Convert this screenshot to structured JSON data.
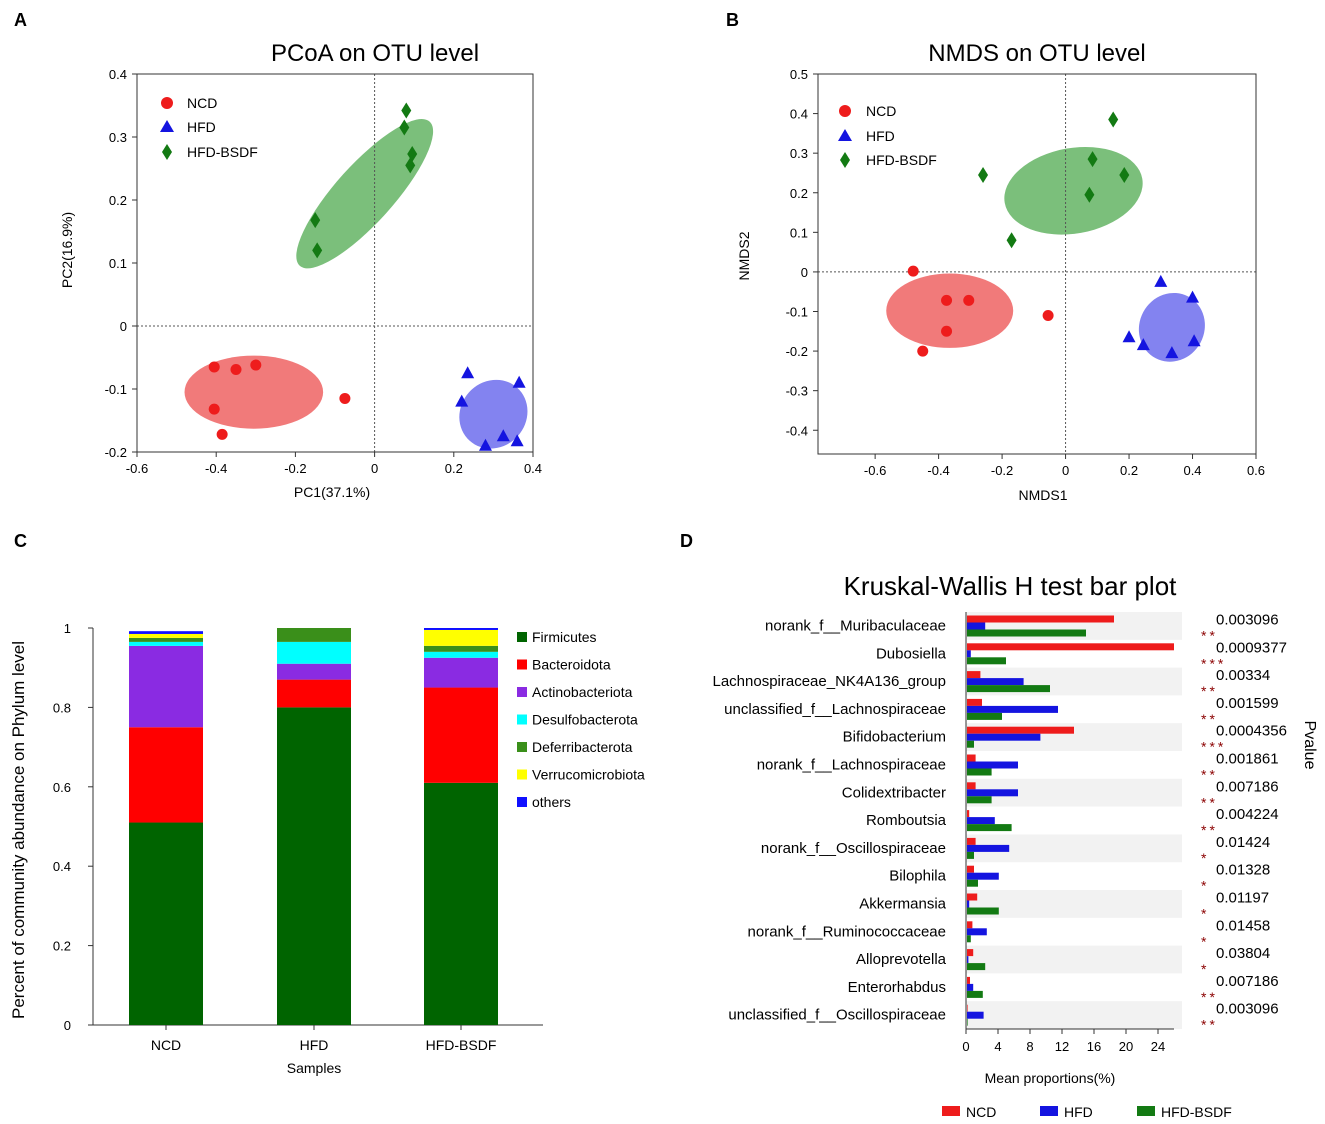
{
  "panels": {
    "a": "A",
    "b": "B",
    "c": "C",
    "d": "D"
  },
  "colors": {
    "ncd": "#ee1c1c",
    "hfd": "#1414e0",
    "hfd_bsdf": "#137a13"
  },
  "chart_data": [
    {
      "panel": "A",
      "type": "scatter",
      "title": "PCoA on OTU level",
      "xlabel": "PC1(37.1%)",
      "ylabel": "PC2(16.9%)",
      "xlim": [
        -0.6,
        0.4
      ],
      "ylim": [
        -0.2,
        0.4
      ],
      "xticks": [
        -0.6,
        -0.4,
        -0.2,
        0,
        0.2,
        0.4
      ],
      "xtick_labels": [
        "-0.6",
        "-0.4",
        "-0.2",
        "0",
        "0.2",
        "0.4"
      ],
      "yticks": [
        -0.2,
        -0.1,
        0,
        0.1,
        0.2,
        0.3,
        0.4
      ],
      "ytick_labels": [
        "-0.2",
        "-0.1",
        "0",
        "0.1",
        "0.2",
        "0.3",
        "0.4"
      ],
      "legend": [
        "NCD",
        "HFD",
        "HFD-BSDF"
      ],
      "series": [
        {
          "name": "NCD",
          "marker": "circle",
          "color": "#ee1c1c",
          "points": [
            [
              -0.405,
              -0.065
            ],
            [
              -0.35,
              -0.069
            ],
            [
              -0.3,
              -0.062
            ],
            [
              -0.405,
              -0.132
            ],
            [
              -0.385,
              -0.172
            ],
            [
              -0.075,
              -0.115
            ]
          ]
        },
        {
          "name": "HFD",
          "marker": "triangle",
          "color": "#1414e0",
          "points": [
            [
              0.235,
              -0.075
            ],
            [
              0.22,
              -0.12
            ],
            [
              0.28,
              -0.19
            ],
            [
              0.325,
              -0.175
            ],
            [
              0.36,
              -0.183
            ],
            [
              0.365,
              -0.09
            ]
          ]
        },
        {
          "name": "HFD-BSDF",
          "marker": "diamond",
          "color": "#137a13",
          "points": [
            [
              -0.15,
              0.168
            ],
            [
              -0.145,
              0.12
            ],
            [
              0.08,
              0.342
            ],
            [
              0.075,
              0.315
            ],
            [
              0.095,
              0.273
            ],
            [
              0.09,
              0.255
            ]
          ]
        }
      ],
      "ellipses": [
        {
          "group": "NCD",
          "cx": -0.305,
          "cy": -0.105,
          "rx": 0.175,
          "ry": 0.058,
          "angle": 0,
          "color": "#ef6b6b"
        },
        {
          "group": "HFD",
          "cx": 0.3,
          "cy": -0.14,
          "rx": 0.09,
          "ry": 0.052,
          "angle": -48,
          "color": "#7676ee"
        },
        {
          "group": "HFD-BSDF",
          "cx": -0.025,
          "cy": 0.21,
          "rx": 0.245,
          "ry": 0.046,
          "angle": -48,
          "color": "#6db86d"
        }
      ]
    },
    {
      "panel": "B",
      "type": "scatter",
      "title": "NMDS on OTU level",
      "xlabel": "NMDS1",
      "ylabel": "NMDS2",
      "xlim": [
        -0.78,
        0.6
      ],
      "ylim": [
        -0.46,
        0.5
      ],
      "xticks": [
        -0.6,
        -0.4,
        -0.2,
        0,
        0.2,
        0.4,
        0.6
      ],
      "xtick_labels": [
        "-0.6",
        "-0.4",
        "-0.2",
        "0",
        "0.2",
        "0.4",
        "0.6"
      ],
      "yticks": [
        -0.4,
        -0.3,
        -0.2,
        -0.1,
        0,
        0.1,
        0.2,
        0.3,
        0.4,
        0.5
      ],
      "ytick_labels": [
        "-0.4",
        "-0.3",
        "-0.2",
        "-0.1",
        "0",
        "0.1",
        "0.2",
        "0.3",
        "0.4",
        "0.5"
      ],
      "legend": [
        "NCD",
        "HFD",
        "HFD-BSDF"
      ],
      "series": [
        {
          "name": "NCD",
          "marker": "circle",
          "color": "#ee1c1c",
          "points": [
            [
              -0.48,
              0.002
            ],
            [
              -0.375,
              -0.072
            ],
            [
              -0.305,
              -0.072
            ],
            [
              -0.375,
              -0.15
            ],
            [
              -0.45,
              -0.2
            ],
            [
              -0.055,
              -0.11
            ]
          ]
        },
        {
          "name": "HFD",
          "marker": "triangle",
          "color": "#1414e0",
          "points": [
            [
              0.3,
              -0.025
            ],
            [
              0.4,
              -0.065
            ],
            [
              0.2,
              -0.165
            ],
            [
              0.245,
              -0.185
            ],
            [
              0.335,
              -0.205
            ],
            [
              0.405,
              -0.175
            ]
          ]
        },
        {
          "name": "HFD-BSDF",
          "marker": "diamond",
          "color": "#137a13",
          "points": [
            [
              -0.26,
              0.245
            ],
            [
              -0.17,
              0.08
            ],
            [
              0.075,
              0.195
            ],
            [
              0.085,
              0.285
            ],
            [
              0.15,
              0.385
            ],
            [
              0.185,
              0.245
            ]
          ]
        }
      ],
      "ellipses": [
        {
          "group": "NCD",
          "cx": -0.365,
          "cy": -0.098,
          "rx": 0.2,
          "ry": 0.094,
          "angle": 0,
          "color": "#ef6b6b"
        },
        {
          "group": "HFD",
          "cx": 0.335,
          "cy": -0.14,
          "rx": 0.11,
          "ry": 0.082,
          "angle": -62,
          "color": "#7676ee"
        },
        {
          "group": "HFD-BSDF",
          "cx": 0.025,
          "cy": 0.205,
          "rx": 0.22,
          "ry": 0.108,
          "angle": -10,
          "color": "#6db86d"
        }
      ]
    },
    {
      "panel": "C",
      "type": "bar",
      "stacked": true,
      "xlabel": "Samples",
      "ylabel": "Percent of community abundance on Phylum level",
      "ylim": [
        0,
        1
      ],
      "yticks": [
        0,
        0.2,
        0.4,
        0.6,
        0.8,
        1
      ],
      "ytick_labels": [
        "0",
        "0.2",
        "0.4",
        "0.6",
        "0.8",
        "1"
      ],
      "categories": [
        "NCD",
        "HFD",
        "HFD-BSDF"
      ],
      "series": [
        {
          "name": "Firmicutes",
          "color": "#006400",
          "values": [
            0.51,
            0.8,
            0.61
          ]
        },
        {
          "name": "Bacteroidota",
          "color": "#ff0000",
          "values": [
            0.24,
            0.07,
            0.24
          ]
        },
        {
          "name": "Actinobacteriota",
          "color": "#8a2be2",
          "values": [
            0.205,
            0.04,
            0.075
          ]
        },
        {
          "name": "Desulfobacterota",
          "color": "#00ffff",
          "values": [
            0.01,
            0.055,
            0.015
          ]
        },
        {
          "name": "Deferribacterota",
          "color": "#3a8f1a",
          "values": [
            0.01,
            0.035,
            0.015
          ]
        },
        {
          "name": "Verrucomicrobiota",
          "color": "#ffff00",
          "values": [
            0.01,
            0.0,
            0.04
          ]
        },
        {
          "name": "others",
          "color": "#1010ff",
          "values": [
            0.007,
            0.0,
            0.005
          ]
        }
      ]
    },
    {
      "panel": "D",
      "type": "bar",
      "orientation": "horizontal",
      "title": "Kruskal-Wallis H test bar plot",
      "xlabel": "Mean proportions(%)",
      "right_label": "Pvalue",
      "xlim": [
        0,
        26
      ],
      "xticks": [
        0,
        4,
        8,
        12,
        16,
        20,
        24
      ],
      "xtick_labels": [
        "0",
        "4",
        "8",
        "12",
        "16",
        "20",
        "24"
      ],
      "legend": [
        "NCD",
        "HFD",
        "HFD-BSDF"
      ],
      "categories": [
        "norank_f__Muribaculaceae",
        "Dubosiella",
        "Lachnospiraceae_NK4A136_group",
        "unclassified_f__Lachnospiraceae",
        "Bifidobacterium",
        "norank_f__Lachnospiraceae",
        "Colidextribacter",
        "Romboutsia",
        "norank_f__Oscillospiraceae",
        "Bilophila",
        "Akkermansia",
        "norank_f__Ruminococcaceae",
        "Alloprevotella",
        "Enterorhabdus",
        "unclassified_f__Oscillospiraceae"
      ],
      "series": [
        {
          "name": "NCD",
          "color": "#ee1c1c",
          "values": [
            18.5,
            26.0,
            1.8,
            2.0,
            13.5,
            1.2,
            1.2,
            0.4,
            1.2,
            1.0,
            1.4,
            0.8,
            0.9,
            0.5,
            0.1
          ]
        },
        {
          "name": "HFD",
          "color": "#1414e0",
          "values": [
            2.4,
            0.6,
            7.2,
            11.5,
            9.3,
            6.5,
            6.5,
            3.6,
            5.4,
            4.1,
            0.4,
            2.6,
            0.3,
            0.9,
            2.2
          ]
        },
        {
          "name": "HFD-BSDF",
          "color": "#137a13",
          "values": [
            15.0,
            5.0,
            10.5,
            4.5,
            1.0,
            3.2,
            3.2,
            5.7,
            1.0,
            1.5,
            4.1,
            0.6,
            2.4,
            2.1,
            0.1
          ]
        }
      ],
      "pvalues": [
        "0.003096",
        "0.0009377",
        "0.00334",
        "0.001599",
        "0.0004356",
        "0.001861",
        "0.007186",
        "0.004224",
        "0.01424",
        "0.01328",
        "0.01197",
        "0.01458",
        "0.03804",
        "0.007186",
        "0.003096"
      ],
      "significance": [
        "**",
        "***",
        "**",
        "**",
        "***",
        "**",
        "**",
        "**",
        "*",
        "*",
        "*",
        "*",
        "*",
        "**",
        "**"
      ]
    }
  ]
}
